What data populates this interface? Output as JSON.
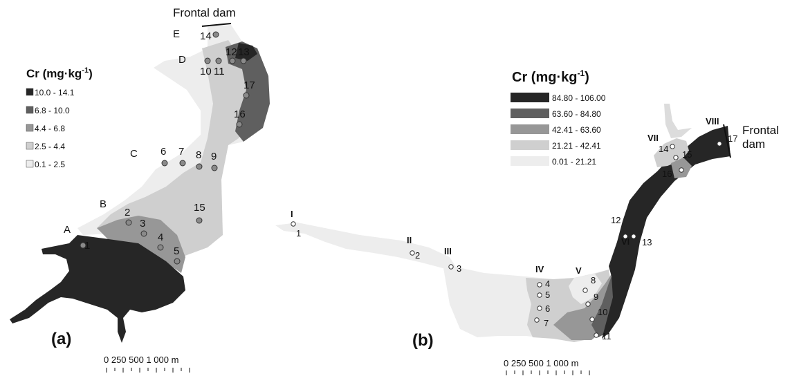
{
  "panel_a": {
    "label": "(a)",
    "legend": {
      "title": "Cr (mg·kg",
      "title_sup": "-1",
      "title_end": ")",
      "classes": [
        {
          "range": "10.0 - 14.1",
          "color": "#262626"
        },
        {
          "range": "6.8 - 10.0",
          "color": "#5f5f5f"
        },
        {
          "range": "4.4 - 6.8",
          "color": "#979797"
        },
        {
          "range": "2.5 - 4.4",
          "color": "#cfcfcf"
        },
        {
          "range": "0.1 - 2.5",
          "color": "#ededed"
        }
      ]
    },
    "dam_label": "Frontal dam",
    "zone_labels": [
      "A",
      "B",
      "C",
      "D",
      "E"
    ],
    "points": [
      "1",
      "2",
      "3",
      "4",
      "5",
      "6",
      "7",
      "8",
      "9",
      "10",
      "11",
      "12",
      "13",
      "14",
      "15",
      "16",
      "17"
    ],
    "scale": {
      "label": "0  250 500       1 000 m"
    }
  },
  "panel_b": {
    "label": "(b)",
    "legend": {
      "title": "Cr (mg·kg",
      "title_sup": "-1",
      "title_end": ")",
      "classes": [
        {
          "range": "84.80 - 106.00",
          "color": "#262626"
        },
        {
          "range": "63.60 - 84.80",
          "color": "#5f5f5f"
        },
        {
          "range": "42.41 - 63.60",
          "color": "#979797"
        },
        {
          "range": "21.21 - 42.41",
          "color": "#cfcfcf"
        },
        {
          "range": "0.01 - 21.21",
          "color": "#ededed"
        }
      ]
    },
    "dam_label_line1": "Frontal",
    "dam_label_line2": "dam",
    "sections": [
      "I",
      "II",
      "III",
      "IV",
      "V",
      "VI",
      "VII",
      "VIII"
    ],
    "points": [
      "1",
      "2",
      "3",
      "4",
      "5",
      "6",
      "7",
      "8",
      "9",
      "10",
      "11",
      "12",
      "13",
      "14",
      "15",
      "16",
      "17"
    ],
    "scale": {
      "label": "0  250 500       1 000 m"
    }
  }
}
